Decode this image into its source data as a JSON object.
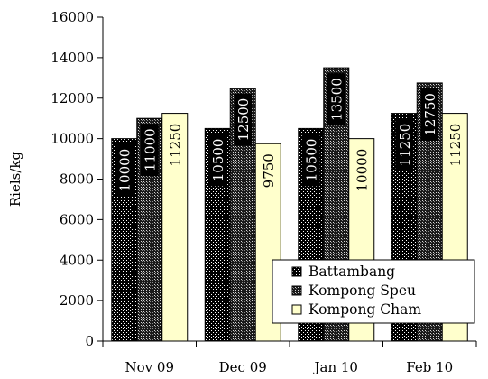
{
  "chart_data": {
    "type": "bar",
    "title": "",
    "xlabel": "",
    "ylabel": "Riels/kg",
    "ylim": [
      0,
      16000
    ],
    "yticks": [
      0,
      2000,
      4000,
      6000,
      8000,
      10000,
      12000,
      14000,
      16000
    ],
    "categories": [
      "Nov 09",
      "Dec 09",
      "Jan 10",
      "Feb 10"
    ],
    "series": [
      {
        "name": "Battambang",
        "values": [
          10000,
          10500,
          10500,
          11250
        ],
        "labels": [
          "10000",
          "10500",
          "10500",
          "11250"
        ]
      },
      {
        "name": "Kompong Speu",
        "values": [
          11000,
          12500,
          13500,
          12750
        ],
        "labels": [
          "11000",
          "12500",
          "13500",
          "12750"
        ]
      },
      {
        "name": "Kompong Cham",
        "values": [
          11250,
          9750,
          10000,
          11250
        ],
        "labels": [
          "11250",
          "9750",
          "10000",
          "11250"
        ]
      }
    ],
    "legend_position": "bottom-right",
    "grid": false
  }
}
